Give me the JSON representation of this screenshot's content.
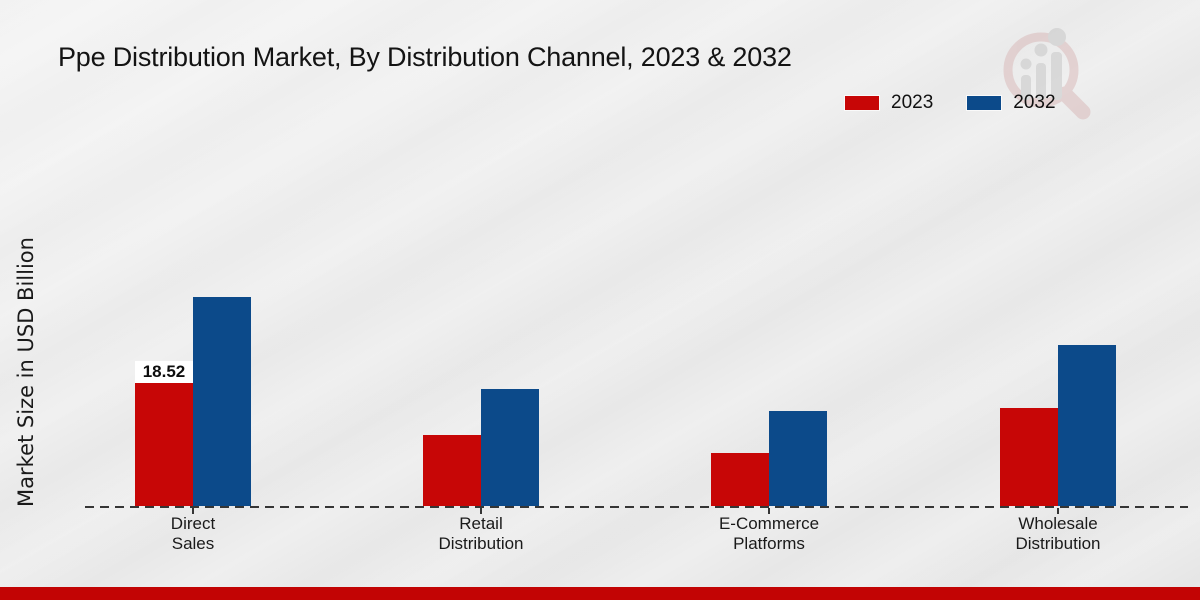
{
  "page": {
    "background_color": "#e9e9e9",
    "footer_accent_color": "#c20404"
  },
  "logo": {
    "name": "growth-chart-magnifier-watermark",
    "glass_color": "#d8b6b6",
    "bars_color": "#c4c4c4"
  },
  "chart_data": {
    "type": "bar",
    "title": "Ppe Distribution Market, By Distribution Channel, 2023 & 2032",
    "ylabel": "Market Size in USD Billion",
    "xlabel": "",
    "categories": [
      "Direct Sales",
      "Retail Distribution",
      "E-Commerce Platforms",
      "Wholesale Distribution"
    ],
    "series": [
      {
        "name": "2023",
        "color": "#c70606",
        "values": [
          18.52,
          10.6,
          8.0,
          14.7
        ]
      },
      {
        "name": "2032",
        "color": "#0c4a8a",
        "values": [
          31.3,
          17.6,
          14.2,
          24.2
        ]
      }
    ],
    "bar_value_labels": [
      {
        "series": "2023",
        "category": "Direct Sales",
        "text": "18.52"
      }
    ],
    "ylim": [
      0,
      35
    ],
    "grid": false,
    "y_axis_visible": false,
    "baseline_style": "dashed",
    "legend_position": "top-right"
  }
}
